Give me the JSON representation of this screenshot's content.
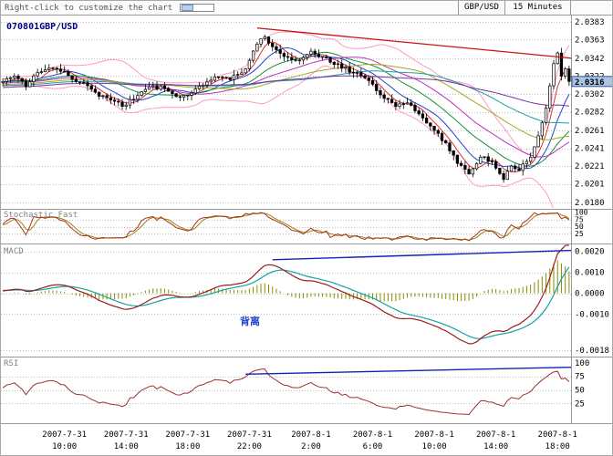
{
  "topbar": {
    "hint": "Right-click to customize the chart",
    "symbol": "GBP/USD",
    "timeframe": "15 Minutes"
  },
  "chart_data": {
    "type": "candlestick",
    "title": "070801GBP/USD",
    "symbol": "GBP/USD",
    "timeframe": "15 Minutes",
    "grid": "dotted-horizontal",
    "legend_position": "none",
    "price_axis": {
      "labels": [
        "2.0383",
        "2.0363",
        "2.0342",
        "2.0322",
        "2.0302",
        "2.0282",
        "2.0261",
        "2.0241",
        "2.0221",
        "2.0201",
        "2.0180"
      ],
      "current": "2.0316",
      "current_value": 2.0316,
      "top": 2.0388,
      "bottom": 2.0175
    },
    "x_axis": {
      "ticks": [
        {
          "bar": 16,
          "date": "2007-7-31",
          "time": "10:00"
        },
        {
          "bar": 32,
          "date": "2007-7-31",
          "time": "14:00"
        },
        {
          "bar": 48,
          "date": "2007-7-31",
          "time": "18:00"
        },
        {
          "bar": 64,
          "date": "2007-7-31",
          "time": "22:00"
        },
        {
          "bar": 80,
          "date": "2007-8-1",
          "time": "2:00"
        },
        {
          "bar": 96,
          "date": "2007-8-1",
          "time": "6:00"
        },
        {
          "bar": 112,
          "date": "2007-8-1",
          "time": "10:00"
        },
        {
          "bar": 128,
          "date": "2007-8-1",
          "time": "14:00"
        },
        {
          "bar": 144,
          "date": "2007-8-1",
          "time": "18:00"
        }
      ]
    },
    "bars_total": 148,
    "preroll_bars": 80,
    "preroll_start": 2.0302,
    "noise_seed": 7,
    "close_waypoints": [
      [
        0,
        2.0316
      ],
      [
        3,
        2.0322
      ],
      [
        6,
        2.031
      ],
      [
        9,
        2.0326
      ],
      [
        13,
        2.0331
      ],
      [
        16,
        2.0327
      ],
      [
        20,
        2.0315
      ],
      [
        24,
        2.0304
      ],
      [
        28,
        2.0295
      ],
      [
        31,
        2.0288
      ],
      [
        34,
        2.0296
      ],
      [
        38,
        2.031
      ],
      [
        42,
        2.0308
      ],
      [
        45,
        2.0299
      ],
      [
        49,
        2.0303
      ],
      [
        52,
        2.0312
      ],
      [
        56,
        2.0321
      ],
      [
        59,
        2.0318
      ],
      [
        63,
        2.033
      ],
      [
        66,
        2.0358
      ],
      [
        68,
        2.0366
      ],
      [
        70,
        2.0355
      ],
      [
        73,
        2.0344
      ],
      [
        77,
        2.034
      ],
      [
        80,
        2.035
      ],
      [
        84,
        2.0343
      ],
      [
        88,
        2.0331
      ],
      [
        92,
        2.0326
      ],
      [
        95,
        2.0317
      ],
      [
        98,
        2.0301
      ],
      [
        102,
        2.0288
      ],
      [
        105,
        2.0292
      ],
      [
        109,
        2.0275
      ],
      [
        112,
        2.0261
      ],
      [
        115,
        2.0247
      ],
      [
        118,
        2.0224
      ],
      [
        121,
        2.0212
      ],
      [
        124,
        2.0231
      ],
      [
        127,
        2.0226
      ],
      [
        130,
        2.0206
      ],
      [
        132,
        2.0221
      ],
      [
        134,
        2.0216
      ],
      [
        137,
        2.0231
      ],
      [
        139,
        2.0255
      ],
      [
        141,
        2.0286
      ],
      [
        143,
        2.0336
      ],
      [
        144,
        2.0348
      ],
      [
        145,
        2.0322
      ],
      [
        146,
        2.033
      ],
      [
        147,
        2.0316
      ]
    ],
    "moving_averages": [
      {
        "period": 5,
        "color": "#e03030"
      },
      {
        "period": 10,
        "color": "#2244cc"
      },
      {
        "period": 20,
        "color": "#13913a"
      },
      {
        "period": 30,
        "color": "#c030c0"
      },
      {
        "period": 45,
        "color": "#a6a61e"
      },
      {
        "period": 60,
        "color": "#1f9d9d"
      },
      {
        "period": 80,
        "color": "#7a2fa8"
      }
    ],
    "bollinger": {
      "period": 20,
      "mult": 2,
      "color": "#ff9ac0"
    },
    "main_trendline": {
      "from": [
        66,
        2.0376
      ],
      "to": [
        148,
        2.0342
      ],
      "color": "#cc1111"
    },
    "panels": {
      "stochastic": {
        "title": "Stochastic Fast",
        "axis_labels": [
          "100",
          "75",
          "50",
          "25"
        ],
        "k_period": 14,
        "d_period": 3,
        "k_color": "#a83318",
        "d_color": "#9b8410"
      },
      "macd": {
        "title": "MACD",
        "axis_labels": [
          "0.0020",
          "0.0010",
          "0.0000",
          "-0.0010",
          "-0.0018"
        ],
        "fast": 12,
        "slow": 26,
        "signal_period": 9,
        "macd_color": "#9b1c1c",
        "signal_color": "#12a3a3",
        "hist_color": "#8a8a00",
        "trendline": {
          "from": [
            70,
            0.0016
          ],
          "to": [
            148,
            0.00205
          ],
          "color": "#1122bb"
        },
        "annotation": "背离",
        "annotation_color": "#2244cc"
      },
      "rsi": {
        "title": "RSI",
        "axis_labels": [
          "100",
          "75",
          "50",
          "25"
        ],
        "period": 14,
        "color": "#9b3030",
        "trendline": {
          "from": [
            63,
            79
          ],
          "to": [
            148,
            92
          ],
          "color": "#1122bb"
        }
      }
    }
  }
}
